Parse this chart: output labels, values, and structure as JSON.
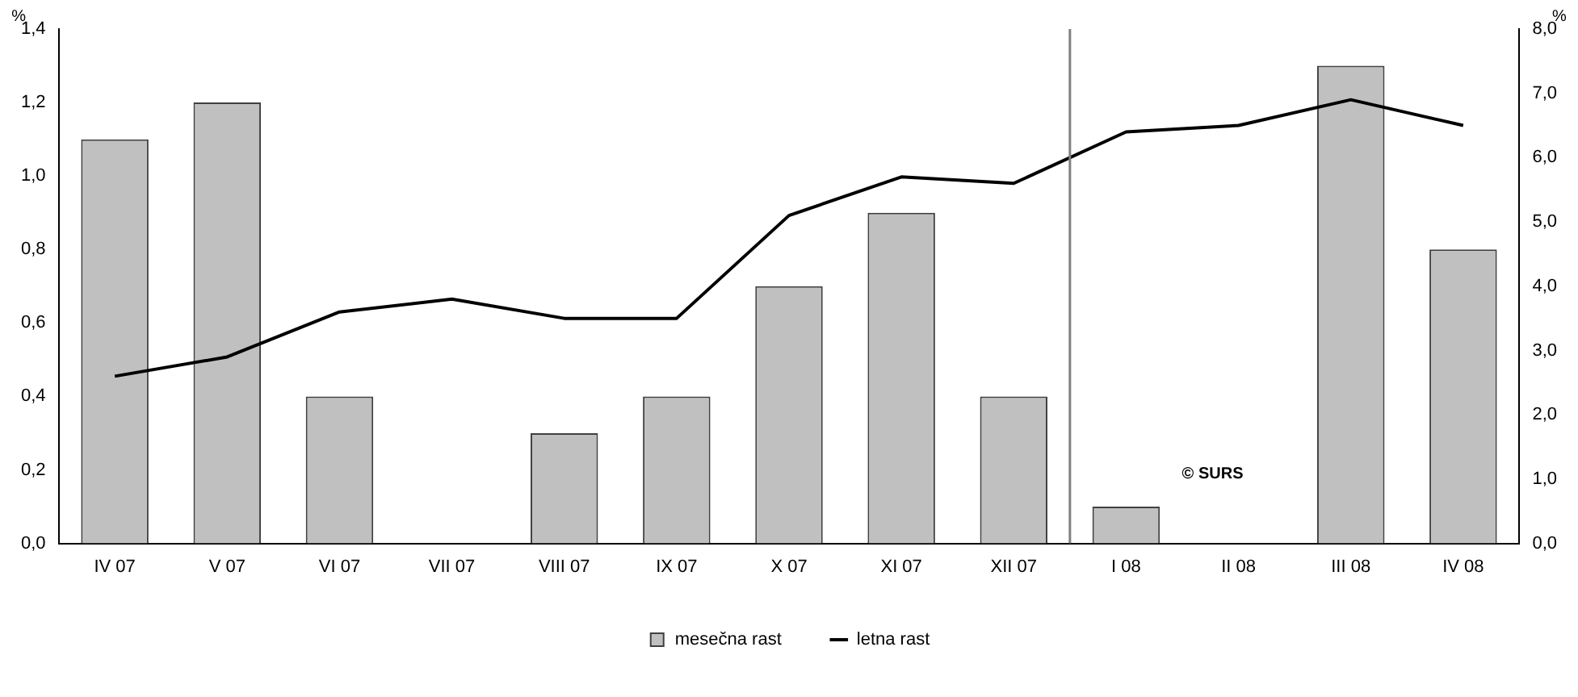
{
  "chart_data": {
    "type": "bar",
    "ylabel": "%",
    "y2label": "%",
    "categories": [
      "IV 07",
      "V 07",
      "VI 07",
      "VII 07",
      "VIII 07",
      "IX 07",
      "X 07",
      "XI 07",
      "XII 07",
      "I 08",
      "II 08",
      "III 08",
      "IV 08"
    ],
    "series": [
      {
        "name": "mesečna rast",
        "color": "#c0c0c0",
        "values": [
          1.1,
          1.2,
          0.4,
          0,
          0.3,
          0.4,
          0.7,
          0.9,
          0.4,
          0.1,
          0,
          1.3,
          0.8
        ]
      },
      {
        "name": "letna rast",
        "type": "line",
        "axis": "y2",
        "color": "#000000",
        "values": [
          2.6,
          2.9,
          3.6,
          3.8,
          3.5,
          3.5,
          5.1,
          5.7,
          5.6,
          6.4,
          6.5,
          6.9,
          6.5
        ]
      }
    ],
    "ylim": [
      0,
      1.4
    ],
    "yticks": [
      {
        "value": 0,
        "label": "0,0"
      },
      {
        "value": 0.2,
        "label": "0,2"
      },
      {
        "value": 0.4,
        "label": "0,4"
      },
      {
        "value": 0.6,
        "label": "0,6"
      },
      {
        "value": 0.8,
        "label": "0,8"
      },
      {
        "value": 1,
        "label": "1,0"
      },
      {
        "value": 1.2,
        "label": "1,2"
      },
      {
        "value": 1.4,
        "label": "1,4"
      }
    ],
    "y2lim": [
      0,
      8
    ],
    "y2ticks": [
      {
        "value": 0,
        "label": "0,0"
      },
      {
        "value": 1,
        "label": "1,0"
      },
      {
        "value": 2,
        "label": "2,0"
      },
      {
        "value": 3,
        "label": "3,0"
      },
      {
        "value": 4,
        "label": "4,0"
      },
      {
        "value": 5,
        "label": "5,0"
      },
      {
        "value": 6,
        "label": "6,0"
      },
      {
        "value": 7,
        "label": "7,0"
      },
      {
        "value": 8,
        "label": "8,0"
      }
    ],
    "annotations": [
      "© SURS"
    ],
    "legend": "bottom",
    "grid": false,
    "marker": "none",
    "line_style": "solid"
  }
}
